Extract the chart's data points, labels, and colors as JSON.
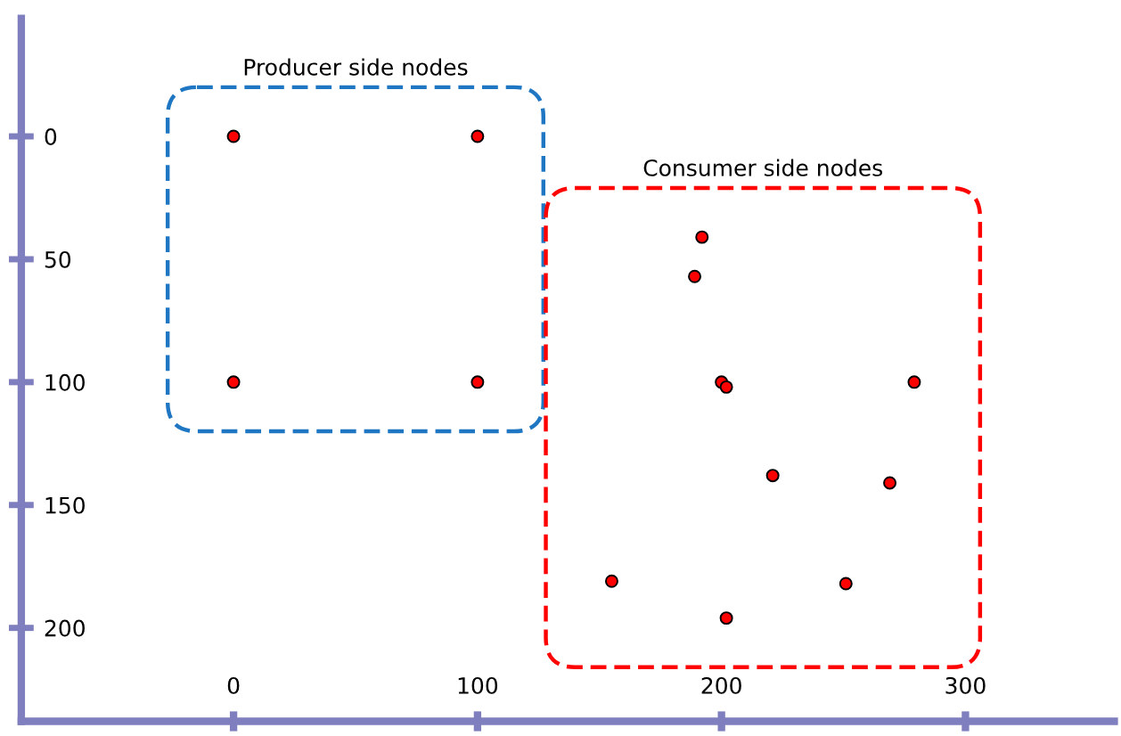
{
  "chart_data": {
    "type": "scatter",
    "xlim": [
      -87,
      361
    ],
    "ylim": [
      238,
      -48
    ],
    "xticks": [
      0,
      100,
      200,
      300
    ],
    "yticks": [
      0,
      50,
      100,
      150,
      200
    ],
    "grid": false,
    "legend": false,
    "marker": "circle",
    "tick_labels": "xy",
    "series": [
      {
        "color": "#ff0000",
        "x": [
          0,
          100,
          0,
          100
        ],
        "values": [
          0,
          0,
          100,
          100
        ]
      },
      {
        "color": "#ff0000",
        "x": [
          192,
          189,
          200,
          202,
          279,
          221,
          269,
          155,
          251,
          202
        ],
        "values": [
          41,
          57,
          100,
          102,
          100,
          138,
          141,
          181,
          182,
          196
        ]
      }
    ],
    "annotations": [
      "Producer side nodes",
      "Consumer side nodes"
    ]
  }
}
